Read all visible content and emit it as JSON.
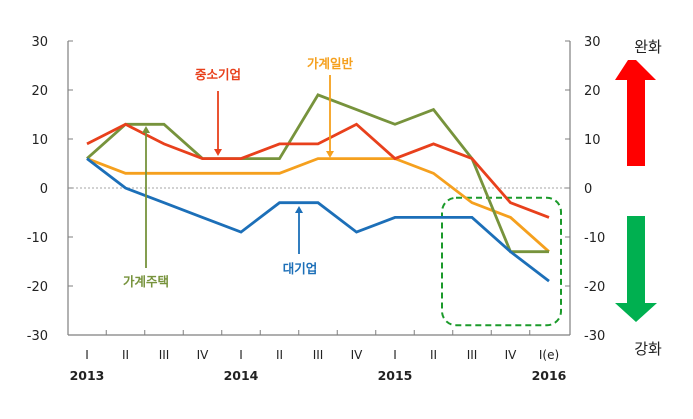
{
  "chart_data": {
    "type": "line",
    "title": "",
    "xlabel": "",
    "ylabel": "",
    "ylim": [
      -30,
      30
    ],
    "yticks": [
      30,
      20,
      10,
      0,
      -10,
      -20,
      -30
    ],
    "yticks_right": [
      30,
      20,
      10,
      0,
      -10,
      -20,
      -30
    ],
    "grid": false,
    "zero_line": "dotted",
    "categories": [
      "I",
      "II",
      "III",
      "IV",
      "I",
      "II",
      "III",
      "IV",
      "I",
      "II",
      "III",
      "IV",
      "I(e)"
    ],
    "years": [
      {
        "label": "2013",
        "at_index": 0
      },
      {
        "label": "2014",
        "at_index": 4
      },
      {
        "label": "2015",
        "at_index": 8
      },
      {
        "label": "2016",
        "at_index": 12
      }
    ],
    "series": [
      {
        "name": "중소기업",
        "color": "#e8401c",
        "values": [
          9,
          13,
          9,
          6,
          6,
          9,
          9,
          13,
          6,
          9,
          6,
          -3,
          -6
        ]
      },
      {
        "name": "가계주택",
        "color": "#77933c",
        "values": [
          6,
          13,
          13,
          6,
          6,
          6,
          19,
          16,
          13,
          16,
          6,
          -13,
          -13
        ]
      },
      {
        "name": "가계일반",
        "color": "#f5a01e",
        "values": [
          6,
          3,
          3,
          3,
          3,
          3,
          6,
          6,
          6,
          3,
          -3,
          -6,
          -13
        ]
      },
      {
        "name": "대기업",
        "color": "#1c6fb8",
        "values": [
          6,
          0,
          -3,
          -6,
          -9,
          -3,
          -3,
          -9,
          -6,
          -6,
          -6,
          -13,
          -19
        ]
      }
    ],
    "annotations": [
      {
        "text": "중소기업",
        "color": "#e8401c",
        "arrow": "down",
        "points_to_index": 4,
        "points_to_value": 6
      },
      {
        "text": "가계일반",
        "color": "#f5a01e",
        "arrow": "down",
        "points_to_index": 6,
        "points_to_value": 6
      },
      {
        "text": "가계주택",
        "color": "#77933c",
        "arrow": "up",
        "points_to_index": 2,
        "points_to_value": 13
      },
      {
        "text": "대기업",
        "color": "#1c6fb8",
        "arrow": "up",
        "points_to_index": 6,
        "points_to_value": -3
      }
    ],
    "highlight_box": {
      "from_index": 10,
      "to_index": 12,
      "y_range": [
        -28,
        -2
      ],
      "style": "dashed",
      "color": "#1a9a2a"
    },
    "side_indicators": {
      "top": {
        "label": "완화",
        "arrow": "up",
        "color": "#ff0000"
      },
      "bottom": {
        "label": "강화",
        "arrow": "down",
        "color": "#00b050"
      }
    }
  }
}
